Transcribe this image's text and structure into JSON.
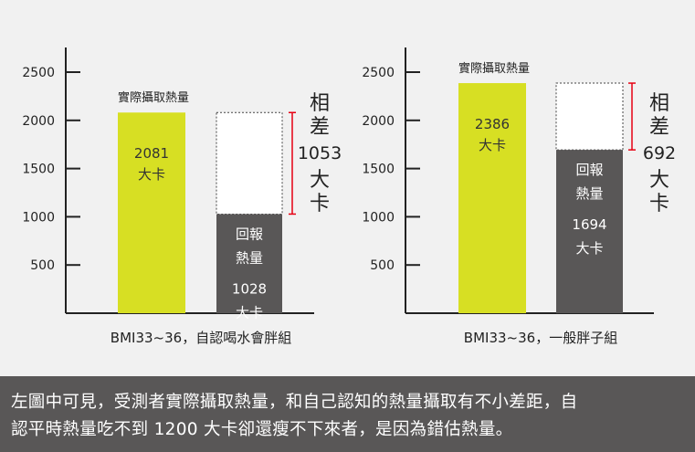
{
  "chart_data": [
    {
      "type": "bar",
      "ylim": [
        0,
        2500
      ],
      "yticks": [
        500,
        1000,
        1500,
        2000,
        2500
      ],
      "xlabel": "BMI33~36，自認喝水會胖組",
      "bars": [
        {
          "value": 2081,
          "fill": "#d7df23",
          "top_label": "實際攝取熱量",
          "label_lines": [
            "2081",
            "大卡"
          ],
          "text_color": "#333333"
        },
        {
          "value": 1028,
          "fill": "#595757",
          "outline_to": 2081,
          "label_lines": [
            "回報",
            "熱量",
            "1028",
            "大卡"
          ],
          "text_color": "#ffffff"
        }
      ],
      "difference": {
        "chars_top": [
          "相",
          "差"
        ],
        "value": "1053",
        "chars_bottom": [
          "大",
          "卡"
        ],
        "color": "#e60012"
      }
    },
    {
      "type": "bar",
      "ylim": [
        0,
        2500
      ],
      "yticks": [
        500,
        1000,
        1500,
        2000,
        2500
      ],
      "xlabel": "BMI33~36，一般胖子組",
      "bars": [
        {
          "value": 2386,
          "fill": "#d7df23",
          "top_label": "實際攝取熱量",
          "label_lines": [
            "2386",
            "大卡"
          ],
          "text_color": "#333333"
        },
        {
          "value": 1694,
          "fill": "#595757",
          "outline_to": 2386,
          "label_lines": [
            "回報",
            "熱量",
            "1694",
            "大卡"
          ],
          "text_color": "#ffffff"
        }
      ],
      "difference": {
        "chars_top": [
          "相",
          "差"
        ],
        "value": "692",
        "chars_bottom": [
          "大",
          "卡"
        ],
        "color": "#e60012"
      }
    }
  ],
  "caption": {
    "lines": [
      "左圖中可見，受測者實際攝取熱量，和自己認知的熱量攝取有不小差距，自",
      "認平時熱量吃不到 1200 大卡卻還瘦不下來者，是因為錯估熱量。"
    ]
  }
}
